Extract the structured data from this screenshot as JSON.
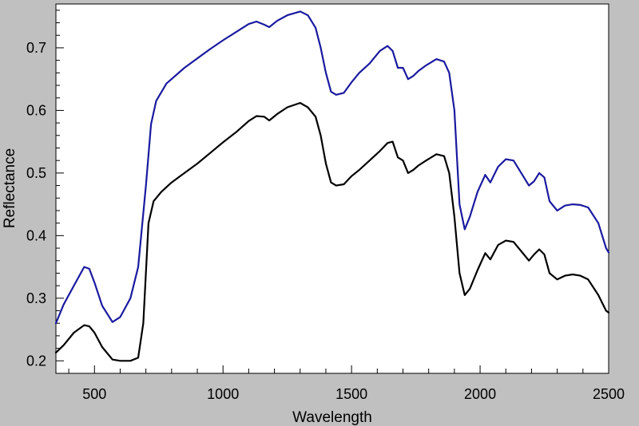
{
  "chart_data": {
    "type": "line",
    "title": "",
    "xlabel": "Wavelength",
    "ylabel": "Reflectance",
    "xlim": [
      350,
      2500
    ],
    "ylim": [
      0.18,
      0.77
    ],
    "xticks": [
      500,
      1000,
      1500,
      2000,
      2500
    ],
    "yticks": [
      0.2,
      0.3,
      0.4,
      0.5,
      0.6,
      0.7
    ],
    "grid": false,
    "legend": "none",
    "colors": {
      "background": "#c0c0c0",
      "plot_area": "#ffffff",
      "series_upper": "#1a1aa0",
      "series_lower": "#000000"
    },
    "series": [
      {
        "color": "#1a1aa0",
        "x": [
          350,
          380,
          420,
          460,
          480,
          500,
          530,
          570,
          600,
          640,
          670,
          700,
          720,
          740,
          780,
          850,
          950,
          1000,
          1050,
          1100,
          1130,
          1160,
          1180,
          1210,
          1250,
          1300,
          1330,
          1360,
          1380,
          1400,
          1420,
          1440,
          1470,
          1500,
          1530,
          1570,
          1610,
          1640,
          1660,
          1680,
          1700,
          1720,
          1740,
          1760,
          1790,
          1830,
          1860,
          1880,
          1900,
          1920,
          1940,
          1960,
          1990,
          2020,
          2040,
          2070,
          2100,
          2130,
          2160,
          2190,
          2210,
          2230,
          2250,
          2270,
          2300,
          2330,
          2360,
          2390,
          2420,
          2460,
          2490,
          2500
        ],
        "y": [
          0.26,
          0.29,
          0.32,
          0.35,
          0.347,
          0.325,
          0.288,
          0.262,
          0.27,
          0.3,
          0.35,
          0.48,
          0.578,
          0.615,
          0.643,
          0.668,
          0.698,
          0.712,
          0.725,
          0.738,
          0.742,
          0.737,
          0.733,
          0.743,
          0.752,
          0.758,
          0.752,
          0.732,
          0.7,
          0.66,
          0.63,
          0.625,
          0.628,
          0.645,
          0.66,
          0.675,
          0.695,
          0.703,
          0.695,
          0.668,
          0.668,
          0.65,
          0.655,
          0.663,
          0.672,
          0.682,
          0.678,
          0.66,
          0.6,
          0.45,
          0.41,
          0.43,
          0.47,
          0.497,
          0.485,
          0.51,
          0.522,
          0.52,
          0.5,
          0.48,
          0.487,
          0.5,
          0.493,
          0.455,
          0.44,
          0.448,
          0.45,
          0.449,
          0.445,
          0.42,
          0.38,
          0.373
        ]
      },
      {
        "color": "#000000",
        "x": [
          350,
          380,
          420,
          460,
          480,
          500,
          530,
          570,
          600,
          640,
          670,
          690,
          710,
          730,
          760,
          800,
          850,
          900,
          950,
          1000,
          1050,
          1100,
          1130,
          1160,
          1180,
          1210,
          1250,
          1300,
          1330,
          1360,
          1380,
          1400,
          1420,
          1440,
          1470,
          1500,
          1530,
          1570,
          1610,
          1640,
          1660,
          1680,
          1700,
          1720,
          1740,
          1760,
          1790,
          1830,
          1860,
          1880,
          1900,
          1920,
          1940,
          1960,
          1990,
          2020,
          2040,
          2070,
          2100,
          2130,
          2160,
          2190,
          2210,
          2230,
          2250,
          2270,
          2300,
          2330,
          2360,
          2390,
          2420,
          2460,
          2490,
          2500
        ],
        "y": [
          0.213,
          0.225,
          0.245,
          0.257,
          0.255,
          0.245,
          0.222,
          0.202,
          0.2,
          0.2,
          0.205,
          0.26,
          0.42,
          0.455,
          0.47,
          0.485,
          0.5,
          0.515,
          0.532,
          0.549,
          0.565,
          0.583,
          0.591,
          0.59,
          0.584,
          0.594,
          0.605,
          0.612,
          0.605,
          0.59,
          0.56,
          0.515,
          0.485,
          0.48,
          0.482,
          0.495,
          0.505,
          0.52,
          0.535,
          0.548,
          0.55,
          0.525,
          0.52,
          0.5,
          0.505,
          0.512,
          0.52,
          0.53,
          0.527,
          0.5,
          0.43,
          0.34,
          0.305,
          0.315,
          0.345,
          0.372,
          0.362,
          0.385,
          0.392,
          0.39,
          0.375,
          0.36,
          0.37,
          0.378,
          0.37,
          0.34,
          0.33,
          0.336,
          0.338,
          0.336,
          0.33,
          0.305,
          0.28,
          0.277
        ]
      }
    ]
  }
}
